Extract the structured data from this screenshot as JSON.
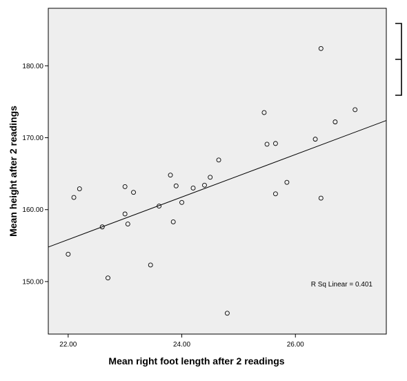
{
  "chart_data": {
    "type": "scatter",
    "title": "",
    "xlabel": "Mean right foot length after 2 readings",
    "ylabel": "Mean height after 2 readings",
    "xlim": [
      21.65,
      27.6
    ],
    "ylim": [
      142.7,
      188.0
    ],
    "x_ticks": [
      "22.00",
      "24.00",
      "26.00"
    ],
    "y_ticks": [
      "150.00",
      "160.00",
      "170.00",
      "180.00"
    ],
    "x_tick_values": [
      22,
      24,
      26
    ],
    "y_tick_values": [
      150,
      160,
      170,
      180
    ],
    "grid": false,
    "background": "#eeeeee",
    "points": [
      {
        "x": 22.0,
        "y": 153.8
      },
      {
        "x": 22.1,
        "y": 161.7
      },
      {
        "x": 22.2,
        "y": 162.9
      },
      {
        "x": 22.6,
        "y": 157.6
      },
      {
        "x": 22.7,
        "y": 150.5
      },
      {
        "x": 23.0,
        "y": 163.2
      },
      {
        "x": 23.0,
        "y": 159.4
      },
      {
        "x": 23.05,
        "y": 158.0
      },
      {
        "x": 23.15,
        "y": 162.4
      },
      {
        "x": 23.45,
        "y": 152.3
      },
      {
        "x": 23.6,
        "y": 160.5
      },
      {
        "x": 23.8,
        "y": 164.8
      },
      {
        "x": 23.85,
        "y": 158.3
      },
      {
        "x": 23.9,
        "y": 163.3
      },
      {
        "x": 24.0,
        "y": 161.0
      },
      {
        "x": 24.2,
        "y": 163.0
      },
      {
        "x": 24.4,
        "y": 163.4
      },
      {
        "x": 24.5,
        "y": 164.5
      },
      {
        "x": 24.65,
        "y": 166.9
      },
      {
        "x": 24.8,
        "y": 145.6
      },
      {
        "x": 25.45,
        "y": 173.5
      },
      {
        "x": 25.5,
        "y": 169.1
      },
      {
        "x": 25.65,
        "y": 169.2
      },
      {
        "x": 25.65,
        "y": 162.2
      },
      {
        "x": 25.85,
        "y": 163.8
      },
      {
        "x": 26.35,
        "y": 169.8
      },
      {
        "x": 26.45,
        "y": 182.4
      },
      {
        "x": 26.45,
        "y": 161.6
      },
      {
        "x": 26.7,
        "y": 172.2
      },
      {
        "x": 27.05,
        "y": 173.9
      }
    ],
    "fit_line": {
      "x": [
        21.65,
        27.6
      ],
      "y": [
        154.8,
        172.4
      ]
    },
    "annotation": "R Sq Linear = 0.401"
  }
}
